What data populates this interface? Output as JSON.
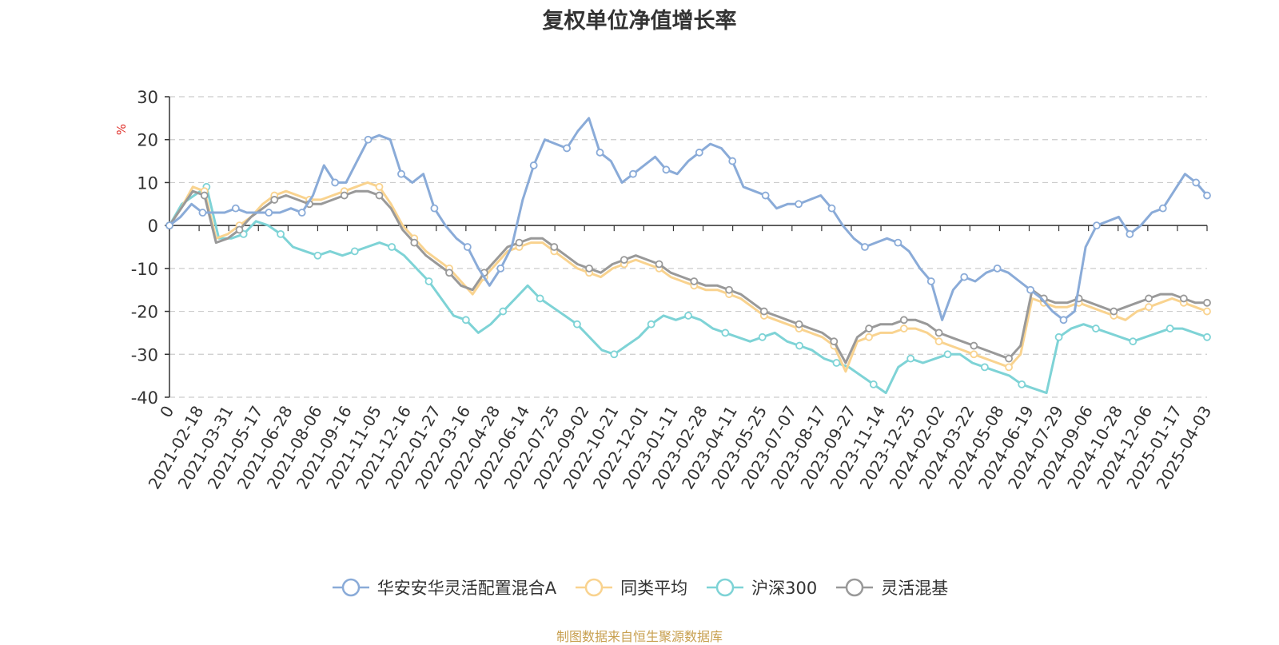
{
  "chart_data": {
    "type": "line",
    "title": "复权单位净值增长率",
    "ylabel": "%",
    "ylim": [
      -40,
      30
    ],
    "yticks": [
      30,
      20,
      10,
      0,
      -10,
      -20,
      -30,
      -40
    ],
    "grid": true,
    "legend_position": "bottom",
    "x_tick_labels": [
      "0",
      "2021-02-18",
      "2021-03-31",
      "2021-05-17",
      "2021-06-28",
      "2021-08-06",
      "2021-09-16",
      "2021-11-05",
      "2021-12-16",
      "2022-01-27",
      "2022-03-16",
      "2022-04-28",
      "2022-06-14",
      "2022-07-25",
      "2022-09-02",
      "2022-10-21",
      "2022-12-01",
      "2023-01-11",
      "2023-02-28",
      "2023-04-11",
      "2023-05-25",
      "2023-07-07",
      "2023-08-17",
      "2023-09-27",
      "2023-11-14",
      "2023-12-25",
      "2024-02-02",
      "2024-03-22",
      "2024-05-08",
      "2024-06-19",
      "2024-07-29",
      "2024-09-06",
      "2024-10-28",
      "2024-12-06",
      "2025-01-17",
      "2025-04-03"
    ],
    "series": [
      {
        "name": "华安安华灵活配置混合A",
        "color": "#8aabd8",
        "values": [
          0,
          2,
          5,
          3,
          3,
          3,
          4,
          3,
          3,
          3,
          3,
          4,
          3,
          7,
          14,
          10,
          10,
          15,
          20,
          21,
          20,
          12,
          10,
          12,
          4,
          0,
          -3,
          -5,
          -10,
          -14,
          -10,
          -5,
          6,
          14,
          20,
          19,
          18,
          22,
          25,
          17,
          15,
          10,
          12,
          14,
          16,
          13,
          12,
          15,
          17,
          19,
          18,
          15,
          9,
          8,
          7,
          4,
          5,
          5,
          6,
          7,
          4,
          0,
          -3,
          -5,
          -4,
          -3,
          -4,
          -6,
          -10,
          -13,
          -22,
          -15,
          -12,
          -13,
          -11,
          -10,
          -11,
          -13,
          -15,
          -17,
          -20,
          -22,
          -20,
          -5,
          0,
          1,
          2,
          -2,
          0,
          3,
          4,
          8,
          12,
          10,
          7
        ]
      },
      {
        "name": "同类平均",
        "color": "#f9d38f",
        "values": [
          0,
          4,
          9,
          8,
          -3,
          -2,
          0,
          2,
          5,
          7,
          8,
          7,
          6,
          6,
          7,
          8,
          9,
          10,
          9,
          5,
          0,
          -3,
          -6,
          -8,
          -10,
          -13,
          -16,
          -12,
          -9,
          -6,
          -5,
          -4,
          -4,
          -6,
          -8,
          -10,
          -11,
          -12,
          -10,
          -9,
          -8,
          -9,
          -10,
          -12,
          -13,
          -14,
          -15,
          -15,
          -16,
          -17,
          -19,
          -21,
          -22,
          -23,
          -24,
          -25,
          -26,
          -28,
          -34,
          -27,
          -26,
          -25,
          -25,
          -24,
          -24,
          -25,
          -27,
          -28,
          -29,
          -30,
          -31,
          -32,
          -33,
          -30,
          -17,
          -18,
          -19,
          -19,
          -18,
          -19,
          -20,
          -21,
          -22,
          -20,
          -19,
          -18,
          -17,
          -18,
          -19,
          -20
        ]
      },
      {
        "name": "沪深300",
        "color": "#7ed3d6",
        "values": [
          0,
          5,
          7,
          9,
          -3,
          -3,
          -2,
          1,
          0,
          -2,
          -5,
          -6,
          -7,
          -6,
          -7,
          -6,
          -5,
          -4,
          -5,
          -7,
          -10,
          -13,
          -17,
          -21,
          -22,
          -25,
          -23,
          -20,
          -17,
          -14,
          -17,
          -19,
          -21,
          -23,
          -26,
          -29,
          -30,
          -28,
          -26,
          -23,
          -21,
          -22,
          -21,
          -22,
          -24,
          -25,
          -26,
          -27,
          -26,
          -25,
          -27,
          -28,
          -29,
          -31,
          -32,
          -33,
          -35,
          -37,
          -39,
          -33,
          -31,
          -32,
          -31,
          -30,
          -30,
          -32,
          -33,
          -34,
          -35,
          -37,
          -38,
          -39,
          -26,
          -24,
          -23,
          -24,
          -25,
          -26,
          -27,
          -26,
          -25,
          -24,
          -24,
          -25,
          -26
        ]
      },
      {
        "name": "灵活混基",
        "color": "#999999",
        "values": [
          0,
          4,
          8,
          7,
          -4,
          -3,
          -1,
          2,
          4,
          6,
          7,
          6,
          5,
          5,
          6,
          7,
          8,
          8,
          7,
          4,
          -1,
          -4,
          -7,
          -9,
          -11,
          -14,
          -15,
          -11,
          -8,
          -5,
          -4,
          -3,
          -3,
          -5,
          -7,
          -9,
          -10,
          -11,
          -9,
          -8,
          -7,
          -8,
          -9,
          -11,
          -12,
          -13,
          -14,
          -14,
          -15,
          -16,
          -18,
          -20,
          -21,
          -22,
          -23,
          -24,
          -25,
          -27,
          -32,
          -26,
          -24,
          -23,
          -23,
          -22,
          -22,
          -23,
          -25,
          -26,
          -27,
          -28,
          -29,
          -30,
          -31,
          -28,
          -15,
          -17,
          -18,
          -18,
          -17,
          -18,
          -19,
          -20,
          -19,
          -18,
          -17,
          -16,
          -16,
          -17,
          -18,
          -18
        ]
      }
    ]
  },
  "source_note": "制图数据来自恒生聚源数据库"
}
